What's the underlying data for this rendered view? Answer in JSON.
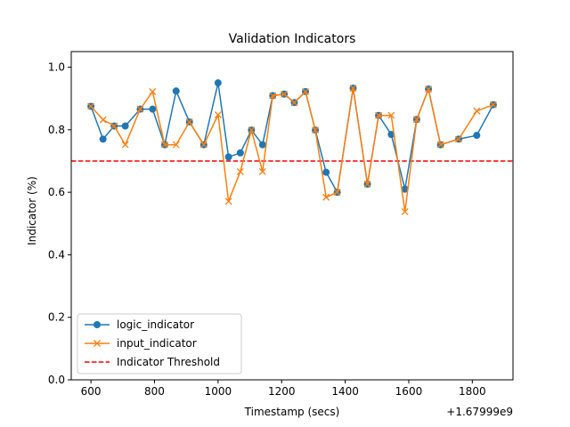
{
  "chart_data": {
    "type": "line",
    "title": "Validation Indicators",
    "xlabel": "Timestamp (secs)",
    "ylabel": "Indicator (%)",
    "x_offset_label": "+1.67999e9",
    "xlim": [
      538,
      1928
    ],
    "ylim": [
      0.0,
      1.05
    ],
    "x_ticks": [
      600,
      800,
      1000,
      1200,
      1400,
      1600,
      1800
    ],
    "x_tick_labels": [
      "600",
      "800",
      "1000",
      "1200",
      "1400",
      "1600",
      "1800"
    ],
    "y_ticks": [
      0.0,
      0.2,
      0.4,
      0.6,
      0.8,
      1.0
    ],
    "y_tick_labels": [
      "0.0",
      "0.2",
      "0.4",
      "0.6",
      "0.8",
      "1.0"
    ],
    "x": [
      600,
      638,
      673,
      708,
      755,
      794,
      832,
      868,
      910,
      955,
      1000,
      1033,
      1070,
      1105,
      1140,
      1172,
      1208,
      1240,
      1275,
      1306,
      1340,
      1375,
      1425,
      1470,
      1505,
      1545,
      1588,
      1625,
      1662,
      1700,
      1757,
      1814,
      1866
    ],
    "series": [
      {
        "name": "logic_indicator",
        "color": "#1f77b4",
        "marker": "circle",
        "values": [
          0.875,
          0.77,
          0.812,
          0.812,
          0.866,
          0.866,
          0.752,
          0.924,
          0.825,
          0.752,
          0.95,
          0.713,
          0.726,
          0.799,
          0.752,
          0.909,
          0.914,
          0.887,
          0.922,
          0.799,
          0.664,
          0.6,
          0.933,
          0.626,
          0.846,
          0.785,
          0.61,
          0.833,
          0.93,
          0.752,
          0.77,
          0.782,
          0.88
        ]
      },
      {
        "name": "input_indicator",
        "color": "#ff7f0e",
        "marker": "x",
        "values": [
          0.875,
          0.832,
          0.812,
          0.752,
          0.866,
          0.922,
          0.752,
          0.752,
          0.825,
          0.752,
          0.848,
          0.571,
          0.666,
          0.799,
          0.666,
          0.909,
          0.914,
          0.887,
          0.922,
          0.799,
          0.584,
          0.6,
          0.933,
          0.626,
          0.846,
          0.846,
          0.538,
          0.833,
          0.93,
          0.752,
          0.77,
          0.86,
          0.88
        ]
      }
    ],
    "threshold": {
      "name": "Indicator Threshold",
      "value": 0.7,
      "color": "#ff0000",
      "style": "dashed"
    },
    "grid": false,
    "legend_position": "lower-left"
  }
}
